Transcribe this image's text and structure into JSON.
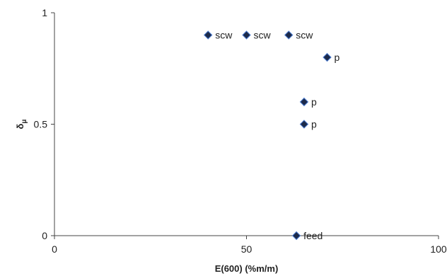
{
  "chart_data": {
    "type": "scatter",
    "xlabel": "E(600) (%m/m)",
    "ylabel": "δμ",
    "xlim": [
      0,
      100
    ],
    "ylim": [
      0,
      1
    ],
    "xticks": [
      0,
      50,
      100
    ],
    "yticks": [
      0,
      0.5,
      1
    ],
    "yticks_labels": [
      "0",
      "0.5",
      "1"
    ],
    "grid": false,
    "marker_color": "#1c2a4a",
    "points": [
      {
        "x": 40,
        "y": 0.9,
        "label": "scw"
      },
      {
        "x": 50,
        "y": 0.9,
        "label": "scw"
      },
      {
        "x": 61,
        "y": 0.9,
        "label": "scw"
      },
      {
        "x": 71,
        "y": 0.8,
        "label": "p"
      },
      {
        "x": 65,
        "y": 0.6,
        "label": "p"
      },
      {
        "x": 65,
        "y": 0.5,
        "label": "p"
      },
      {
        "x": 63,
        "y": 0.0,
        "label": "feed"
      }
    ]
  }
}
